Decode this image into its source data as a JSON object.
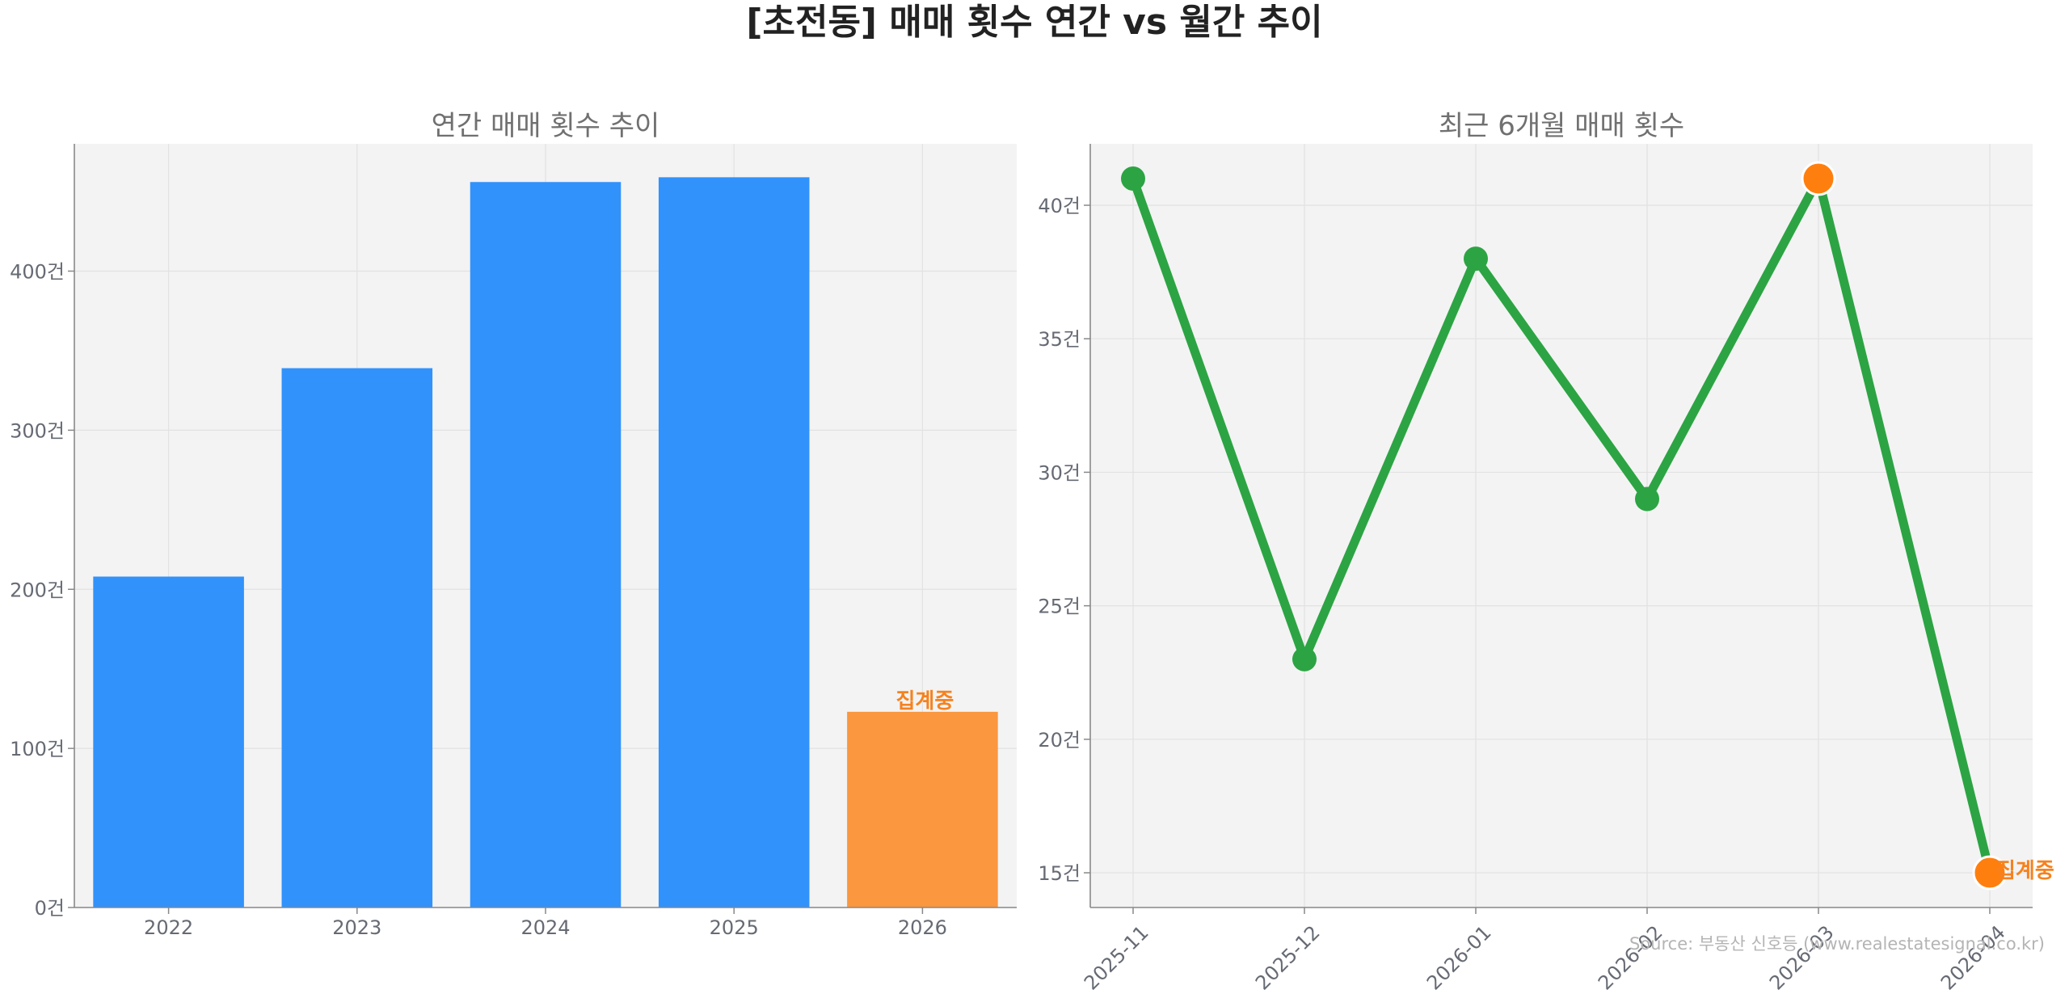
{
  "figure": {
    "title": "[초전동] 매매 횟수 연간 vs 월간 추이",
    "source": "Source: 부동산 신호등 (www.realestatesignal.co.kr)"
  },
  "chart_data": [
    {
      "type": "bar",
      "title": "연간 매매 횟수 추이",
      "categories": [
        "2022",
        "2023",
        "2024",
        "2025",
        "2026"
      ],
      "values": [
        208,
        339,
        456,
        459,
        123
      ],
      "y_unit": "건",
      "ylim": [
        0,
        480
      ],
      "yticks": [
        0,
        100,
        200,
        300,
        400
      ],
      "ytick_labels": [
        "0건",
        "100건",
        "200건",
        "300건",
        "400건"
      ],
      "grid": true,
      "bar_colors": [
        "#3192fb",
        "#3192fb",
        "#3192fb",
        "#3192fb",
        "#fa973f"
      ],
      "annotations": [
        {
          "category": "2026",
          "text": "집계중",
          "color": "#f5821f"
        }
      ]
    },
    {
      "type": "line",
      "title": "최근 6개월 매매 횟수",
      "x": [
        "2025-11",
        "2025-12",
        "2026-01",
        "2026-02",
        "2026-03",
        "2026-04"
      ],
      "values": [
        41,
        23,
        38,
        29,
        41,
        15
      ],
      "y_unit": "건",
      "ylim": [
        13.7,
        42.3
      ],
      "yticks": [
        15,
        20,
        25,
        30,
        35,
        40
      ],
      "ytick_labels": [
        "15건",
        "20건",
        "25건",
        "30건",
        "35건",
        "40건"
      ],
      "grid": true,
      "line_color": "#2ca443",
      "highlight_color": "#ff7f0e",
      "highlight_points": [
        "2026-03",
        "2026-04"
      ],
      "annotations": [
        {
          "x": "2026-04",
          "text": "집계중",
          "color": "#f5821f"
        }
      ]
    }
  ]
}
